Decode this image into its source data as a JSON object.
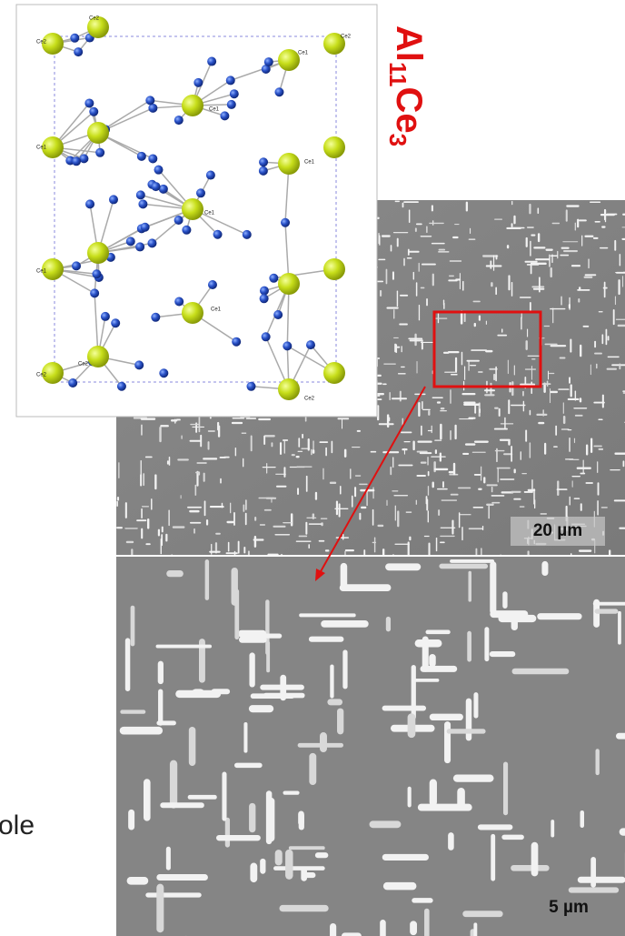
{
  "crystal": {
    "formula": [
      "Al",
      "11",
      "Ce",
      "3"
    ],
    "atom_labels": [
      "Ce2",
      "Ce2",
      "Ce2",
      "Ce1",
      "Ce1",
      "Ce1",
      "Ce1",
      "Ce1",
      "Ce1",
      "Ce1",
      "Ce2",
      "Ce2",
      "Ce2"
    ]
  },
  "micrographs": [
    {
      "scale_bar": "20 µm"
    },
    {
      "scale_bar": "5 µm"
    }
  ],
  "side_text": "ole"
}
